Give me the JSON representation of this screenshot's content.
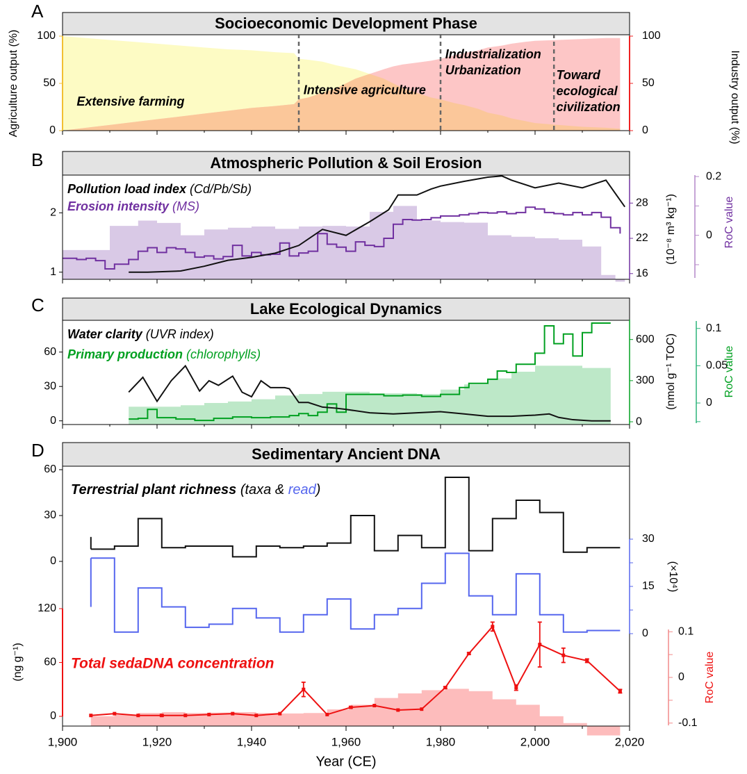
{
  "x_axis": {
    "label": "Year (CE)",
    "range": [
      1900,
      2020
    ],
    "ticks": [
      1900,
      1920,
      1940,
      1960,
      1980,
      2000,
      2020
    ],
    "tick_labels": [
      "1,900",
      "1,920",
      "1,940",
      "1,960",
      "1,980",
      "2,000",
      "2,020"
    ]
  },
  "colors": {
    "farming_fill": "#fdfbc4",
    "agriculture_fill": "#fbc79a",
    "industry_fill": "#fdc6c6",
    "pollution": "#111111",
    "erosion": "#7030a0",
    "erosion_roc": "#d9c9e6",
    "primary_production": "#00a020",
    "primary_roc": "#bde8c8",
    "rich_taxa": "#111111",
    "rich_read": "#5566ee",
    "dna": "#ee1111",
    "dna_roc": "#fdbcbc",
    "header_fill": "#e3e3e3",
    "agri_axis": "#f2bf33",
    "ind_axis": "#ee2222",
    "roc_b_axis": "#b487c9",
    "roc_c_axis": "#2bb37a",
    "roc_d_axis": "#f28a8a"
  },
  "chart_data": [
    {
      "panel": "A",
      "type": "area",
      "title": "Socioeconomic Development Phase",
      "ylabel_left": "Agriculture output (%)",
      "ylabel_right": "Industry output (%)",
      "yticks_left": [
        0,
        50,
        100
      ],
      "yticks_right": [
        0,
        50,
        100
      ],
      "ylim": [
        0,
        100
      ],
      "phase_boundaries": [
        1950,
        1980,
        2004
      ],
      "phase_labels": [
        {
          "text": "Extensive farming",
          "x": 1903,
          "y": 30
        },
        {
          "text": "Intensive agriculture",
          "x": 1951,
          "y": 42
        },
        {
          "text": "Industrialization",
          "x": 1981,
          "y": 80
        },
        {
          "text": "Urbanization",
          "x": 1981,
          "y": 63
        },
        {
          "text": "Toward",
          "x": 2004.5,
          "y": 58
        },
        {
          "text": "ecological",
          "x": 2004.5,
          "y": 41
        },
        {
          "text": "civilization",
          "x": 2004.5,
          "y": 24
        }
      ],
      "series": [
        {
          "name": "Agriculture output",
          "x": [
            1900,
            1905,
            1910,
            1915,
            1920,
            1925,
            1930,
            1935,
            1940,
            1945,
            1949,
            1950,
            1952,
            1955,
            1958,
            1960,
            1962,
            1965,
            1968,
            1970,
            1972,
            1975,
            1978,
            1980,
            1983,
            1985,
            1988,
            1990,
            1993,
            1995,
            1998,
            2000,
            2005,
            2010,
            2015,
            2018
          ],
          "values": [
            100,
            98,
            96,
            94,
            92,
            90,
            88,
            86,
            85,
            83,
            82,
            76,
            75,
            73,
            69,
            67,
            65,
            60,
            55,
            50,
            45,
            40,
            35,
            33,
            29,
            27,
            23,
            19,
            16,
            13,
            10,
            8,
            6,
            4,
            3,
            2
          ]
        },
        {
          "name": "Industry output",
          "x": [
            1900,
            1905,
            1910,
            1915,
            1920,
            1925,
            1930,
            1935,
            1940,
            1945,
            1949,
            1950,
            1952,
            1955,
            1958,
            1960,
            1962,
            1965,
            1968,
            1970,
            1972,
            1975,
            1978,
            1980,
            1983,
            1985,
            1988,
            1990,
            1993,
            1995,
            1998,
            2000,
            2005,
            2010,
            2015,
            2018
          ],
          "values": [
            0,
            3,
            6,
            9,
            12,
            15,
            18,
            21,
            24,
            26,
            28,
            33,
            35,
            40,
            45,
            50,
            55,
            60,
            65,
            68,
            70,
            72,
            74,
            76,
            80,
            82,
            85,
            88,
            90,
            92,
            94,
            95,
            96,
            97,
            98,
            98
          ]
        }
      ]
    },
    {
      "panel": "B",
      "type": "line",
      "title": "Atmospheric Pollution & Soil Erosion",
      "legend": {
        "pollution_title": "Pollution load index",
        "pollution_sub": "(Cd/Pb/Sb)",
        "erosion_title": "Erosion intensity",
        "erosion_sub": "(MS)"
      },
      "yticks_left": [
        1,
        2
      ],
      "ylim_left": [
        0.95,
        2.6
      ],
      "yticks_right": [
        16,
        22,
        28
      ],
      "ylim_right": [
        15.5,
        33
      ],
      "ylabel_right": "(10⁻⁸ m³ kg⁻¹)",
      "ylabel_roc": "RoC value",
      "roc_ticks": [
        0.2,
        0
      ],
      "roc_tick_labels": [
        "0.2",
        "0"
      ],
      "roc_range": [
        -0.145,
        0.205
      ],
      "series": [
        {
          "name": "Pollution load index",
          "x": [
            1914,
            1918,
            1925,
            1930,
            1935,
            1940,
            1945,
            1950,
            1955,
            1960,
            1965,
            1969,
            1971,
            1975,
            1978,
            1980,
            1985,
            1990,
            1993,
            1995,
            2000,
            2005,
            2010,
            2015,
            2019
          ],
          "values": [
            1.0,
            1.0,
            1.02,
            1.1,
            1.2,
            1.25,
            1.32,
            1.45,
            1.72,
            1.62,
            1.85,
            2.05,
            2.3,
            2.3,
            2.4,
            2.45,
            2.53,
            2.6,
            2.62,
            2.55,
            2.42,
            2.5,
            2.42,
            2.55,
            2.1
          ]
        },
        {
          "name": "Erosion intensity",
          "step": true,
          "x": [
            1900,
            1903,
            1905,
            1907,
            1909,
            1911,
            1914,
            1916,
            1918,
            1920,
            1922,
            1924,
            1926,
            1928,
            1930,
            1932,
            1934,
            1936,
            1938,
            1940,
            1942,
            1944,
            1946,
            1948,
            1950,
            1952,
            1954,
            1956,
            1958,
            1960,
            1962,
            1964,
            1966,
            1968,
            1970,
            1972,
            1974,
            1976,
            1978,
            1980,
            1982,
            1984,
            1986,
            1988,
            1990,
            1992,
            1994,
            1996,
            1998,
            2000,
            2002,
            2004,
            2006,
            2008,
            2010,
            2012,
            2014,
            2016,
            2018
          ],
          "values": [
            18.6,
            18.4,
            18.6,
            18.2,
            16.8,
            17.6,
            18.4,
            19.8,
            20.4,
            19.6,
            20.4,
            20.2,
            19.6,
            18.8,
            19.0,
            18.5,
            18.9,
            20.8,
            19.0,
            19.6,
            19.2,
            19.3,
            21.2,
            19.0,
            19.5,
            19.8,
            22.8,
            21.0,
            20.5,
            19.8,
            21.4,
            20.8,
            20.6,
            22.0,
            24.4,
            25.2,
            25.1,
            25.2,
            25.5,
            25.8,
            25.8,
            26.0,
            26.2,
            26.4,
            26.3,
            26.5,
            26.2,
            26.4,
            27.3,
            27.0,
            26.4,
            26.2,
            26.0,
            26.4,
            26.0,
            26.4,
            25.6,
            23.8,
            22.8
          ]
        },
        {
          "name": "Erosion RoC",
          "type": "step_area",
          "x": [
            1900,
            1910,
            1916,
            1920,
            1925,
            1930,
            1935,
            1940,
            1945,
            1950,
            1955,
            1960,
            1965,
            1970,
            1975,
            1980,
            1985,
            1990,
            1995,
            2000,
            2005,
            2010,
            2014,
            2017
          ],
          "x_end": 2019,
          "values": [
            -0.05,
            0.032,
            0.05,
            0.042,
            0.0,
            0.02,
            0.026,
            0.03,
            0.022,
            0.03,
            0.032,
            0.03,
            0.08,
            0.1,
            0.05,
            0.045,
            0.043,
            0.0,
            -0.005,
            -0.01,
            -0.015,
            -0.038,
            -0.135,
            -0.158
          ]
        }
      ]
    },
    {
      "panel": "C",
      "type": "line",
      "title": "Lake Ecological Dynamics",
      "legend": {
        "clarity_title": "Water clarity",
        "clarity_sub": "(UVR index)",
        "production_title": "Primary production",
        "production_sub": "(chlorophylls)"
      },
      "yticks_left": [
        0,
        30,
        60
      ],
      "ylim_left": [
        -2,
        75
      ],
      "yticks_right": [
        0,
        300,
        600
      ],
      "ylim_right": [
        -20,
        720
      ],
      "ylabel_right": "(nmol g⁻¹ TOC)",
      "ylabel_roc": "RoC value",
      "roc_ticks": [
        0.1,
        0.05,
        0
      ],
      "roc_tick_labels": [
        "0.1",
        "0.05",
        "0"
      ],
      "roc_range": [
        -0.027,
        0.11
      ],
      "series": [
        {
          "name": "Water clarity",
          "x": [
            1914,
            1917,
            1920,
            1923,
            1926,
            1929,
            1931,
            1933,
            1936,
            1938,
            1940,
            1942,
            1944,
            1947,
            1948,
            1950,
            1952,
            1955,
            1958,
            1960,
            1965,
            1970,
            1975,
            1980,
            1985,
            1990,
            1995,
            2000,
            2003,
            2005,
            2008,
            2012,
            2016
          ],
          "values": [
            25,
            38,
            17,
            35,
            48,
            26,
            35,
            31,
            39,
            25,
            21,
            35,
            29,
            29,
            28,
            16,
            16,
            12,
            11,
            10,
            7,
            6,
            7,
            8,
            6,
            4,
            4,
            5,
            6,
            3,
            1,
            0,
            0
          ]
        },
        {
          "name": "Primary production",
          "step": true,
          "x": [
            1914,
            1916,
            1918,
            1920,
            1924,
            1928,
            1932,
            1936,
            1940,
            1944,
            1948,
            1950,
            1952,
            1954,
            1956,
            1958,
            1960,
            1964,
            1968,
            1972,
            1976,
            1980,
            1984,
            1986,
            1990,
            1992,
            1994,
            1996,
            2000,
            2002,
            2004,
            2006,
            2008,
            2010,
            2012,
            2014
          ],
          "x_end": 2016,
          "values": [
            20,
            25,
            90,
            30,
            20,
            10,
            25,
            35,
            30,
            35,
            45,
            60,
            45,
            70,
            130,
            70,
            200,
            200,
            190,
            195,
            185,
            200,
            250,
            280,
            310,
            370,
            360,
            420,
            500,
            700,
            570,
            640,
            480,
            650,
            720,
            720
          ]
        },
        {
          "name": "Primary production RoC",
          "type": "step_area",
          "x": [
            1914,
            1920,
            1925,
            1930,
            1935,
            1940,
            1945,
            1950,
            1955,
            1960,
            1965,
            1970,
            1975,
            1980,
            1985,
            1990,
            1995,
            2000,
            2005,
            2010
          ],
          "x_end": 2016,
          "values": [
            -0.005,
            -0.005,
            -0.003,
            0.0,
            0.002,
            0.005,
            0.01,
            0.012,
            0.015,
            0.015,
            0.013,
            0.013,
            0.012,
            0.018,
            0.025,
            0.033,
            0.042,
            0.05,
            0.05,
            0.047
          ]
        }
      ]
    },
    {
      "panel": "D",
      "type": "line",
      "title": "Sedimentary Ancient DNA",
      "legend": {
        "richness_title": "Terrestrial plant richness",
        "richness_open": "(taxa &",
        "richness_read": "read",
        "richness_close": ")",
        "dna_title": "Total sedaDNA concentration"
      },
      "taxa_ticks": [
        0,
        30,
        60
      ],
      "taxa_range": [
        0,
        60
      ],
      "read_ticks": [
        0,
        15,
        30
      ],
      "read_range": [
        0,
        30
      ],
      "read_label": "(×10⁴)",
      "dna_ticks": [
        0,
        60,
        120
      ],
      "dna_range": [
        0,
        120
      ],
      "dna_label": "(ng g⁻¹)",
      "ylabel_roc": "RoC value",
      "roc_ticks": [
        0.1,
        0,
        -0.1
      ],
      "roc_tick_labels": [
        "0.1",
        "0",
        "-0.1"
      ],
      "roc_range": [
        -0.105,
        0.105
      ],
      "series": [
        {
          "name": "Richness (taxa)",
          "step": true,
          "x": [
            1906,
            1911,
            1916,
            1921,
            1926,
            1931,
            1936,
            1941,
            1946,
            1951,
            1956,
            1961,
            1966,
            1971,
            1976,
            1981,
            1986,
            1991,
            1996,
            2001,
            2006,
            2011
          ],
          "x_end": 2018,
          "values": [
            8,
            10,
            28,
            9,
            10,
            10,
            3,
            10,
            9,
            10,
            12,
            30,
            7,
            17,
            9,
            55,
            7,
            28,
            40,
            32,
            6,
            9
          ]
        },
        {
          "name": "Richness (read)",
          "step": true,
          "x": [
            1906,
            1911,
            1916,
            1921,
            1926,
            1931,
            1936,
            1941,
            1946,
            1951,
            1956,
            1961,
            1966,
            1971,
            1976,
            1981,
            1986,
            1991,
            1996,
            2001,
            2006,
            2011
          ],
          "x_end": 2018,
          "values": [
            24,
            0.5,
            14.5,
            8.5,
            2,
            3,
            8,
            5,
            0.5,
            6,
            11,
            1.5,
            6,
            8,
            16,
            25.5,
            12,
            6,
            19,
            6,
            0.5,
            1
          ]
        },
        {
          "name": "Total sedaDNA concentration",
          "x": [
            1906,
            1911,
            1916,
            1921,
            1926,
            1931,
            1936,
            1941,
            1946,
            1951,
            1956,
            1961,
            1966,
            1971,
            1976,
            1981,
            1986,
            1991,
            1996,
            2001,
            2006,
            2011,
            2018
          ],
          "values": [
            1,
            3,
            1,
            1,
            1,
            2,
            3,
            1,
            3,
            30,
            2,
            10,
            12,
            7,
            8,
            32,
            70,
            100,
            32,
            80,
            68,
            62,
            28
          ],
          "error": [
            0,
            0,
            0,
            1,
            0,
            0,
            0,
            0,
            0,
            8,
            0,
            1,
            0,
            0,
            0,
            1,
            1,
            5,
            3,
            25,
            8,
            2,
            2
          ]
        },
        {
          "name": "sedaDNA RoC",
          "type": "step_area",
          "x": [
            1906,
            1911,
            1916,
            1921,
            1926,
            1931,
            1936,
            1941,
            1946,
            1951,
            1956,
            1961,
            1966,
            1971,
            1976,
            1981,
            1986,
            1991,
            1996,
            2001,
            2006,
            2011
          ],
          "x_end": 2018,
          "values": [
            -0.085,
            -0.082,
            -0.078,
            -0.076,
            -0.078,
            -0.077,
            -0.076,
            -0.078,
            -0.079,
            -0.078,
            -0.07,
            -0.06,
            -0.045,
            -0.035,
            -0.028,
            -0.025,
            -0.03,
            -0.048,
            -0.06,
            -0.085,
            -0.1,
            -0.127
          ]
        }
      ]
    }
  ]
}
